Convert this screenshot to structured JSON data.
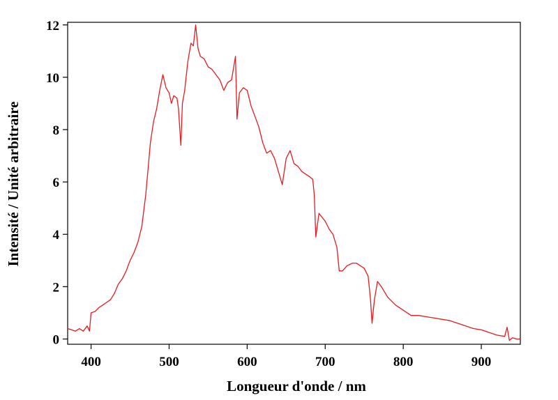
{
  "chart_data": {
    "type": "line",
    "title": "",
    "xlabel": "Longueur d'onde / nm",
    "ylabel": "Intensité / Unité arbitraire",
    "xlim": [
      370,
      950
    ],
    "ylim": [
      -0.2,
      12.1
    ],
    "xticks": [
      400,
      500,
      600,
      700,
      800,
      900
    ],
    "xtick_labels": [
      "400",
      "500",
      "600",
      "700",
      "800",
      "900"
    ],
    "yticks": [
      0,
      2,
      4,
      6,
      8,
      10,
      12
    ],
    "ytick_labels": [
      "0",
      "2",
      "4",
      "6",
      "8",
      "10",
      "12"
    ],
    "grid": false,
    "legend": "none",
    "series": [
      {
        "color": "#e8191c",
        "x": [
          370,
          375,
          380,
          385,
          390,
          395,
          398,
          400,
          405,
          410,
          415,
          420,
          425,
          430,
          435,
          440,
          445,
          450,
          455,
          460,
          465,
          470,
          473,
          476,
          480,
          484,
          488,
          492,
          496,
          500,
          503,
          506,
          510,
          512,
          515,
          517,
          520,
          524,
          528,
          531,
          534,
          537,
          540,
          545,
          550,
          555,
          560,
          565,
          570,
          575,
          580,
          585,
          587,
          590,
          595,
          600,
          605,
          610,
          615,
          620,
          625,
          630,
          635,
          640,
          645,
          650,
          655,
          660,
          665,
          670,
          675,
          680,
          684,
          686,
          688,
          692,
          700,
          705,
          710,
          715,
          718,
          722,
          728,
          735,
          740,
          745,
          750,
          755,
          758,
          760,
          763,
          767,
          772,
          780,
          790,
          800,
          810,
          820,
          830,
          840,
          850,
          860,
          870,
          880,
          890,
          900,
          910,
          920,
          930,
          933,
          936,
          940,
          945,
          950
        ],
        "y": [
          0.4,
          0.35,
          0.3,
          0.4,
          0.3,
          0.5,
          0.3,
          1.0,
          1.05,
          1.2,
          1.3,
          1.4,
          1.5,
          1.75,
          2.1,
          2.3,
          2.6,
          3.0,
          3.3,
          3.7,
          4.3,
          5.5,
          6.5,
          7.5,
          8.3,
          8.8,
          9.5,
          10.1,
          9.6,
          9.4,
          9.0,
          9.3,
          9.2,
          8.8,
          7.4,
          9.0,
          9.5,
          10.6,
          11.3,
          11.2,
          12.0,
          11.1,
          10.8,
          10.7,
          10.4,
          10.3,
          10.1,
          9.9,
          9.5,
          9.8,
          9.9,
          10.8,
          8.4,
          9.4,
          9.6,
          9.5,
          8.9,
          8.5,
          8.1,
          7.5,
          7.1,
          7.2,
          6.9,
          6.4,
          5.9,
          6.9,
          7.2,
          6.7,
          6.6,
          6.4,
          6.3,
          6.2,
          6.1,
          5.5,
          3.9,
          4.8,
          4.5,
          4.2,
          4.0,
          3.5,
          2.6,
          2.6,
          2.8,
          2.9,
          2.9,
          2.8,
          2.7,
          2.4,
          1.5,
          0.6,
          1.5,
          2.2,
          2.0,
          1.6,
          1.3,
          1.1,
          0.9,
          0.9,
          0.85,
          0.8,
          0.75,
          0.7,
          0.6,
          0.5,
          0.4,
          0.35,
          0.25,
          0.15,
          0.1,
          0.45,
          -0.05,
          0.05,
          0.0,
          0.0
        ]
      }
    ]
  }
}
